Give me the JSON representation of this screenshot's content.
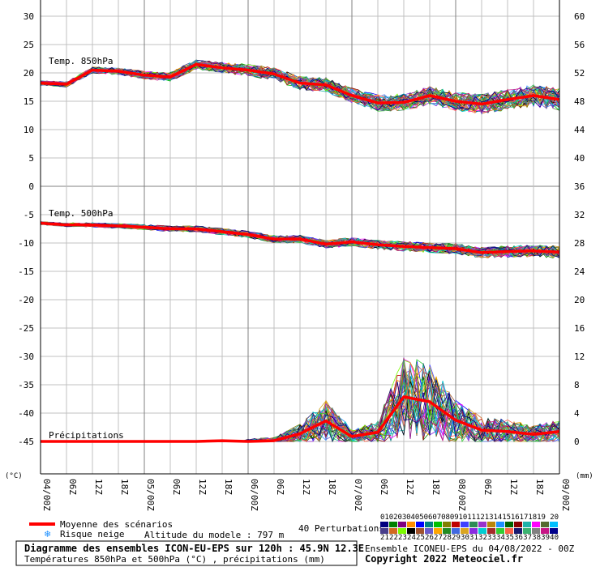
{
  "chart_data": {
    "type": "line",
    "x_labels": [
      "04/00Z",
      "06Z",
      "12Z",
      "18Z",
      "05/00Z",
      "06Z",
      "12Z",
      "18Z",
      "06/00Z",
      "06Z",
      "12Z",
      "18Z",
      "07/00Z",
      "06Z",
      "12Z",
      "18Z",
      "08/00Z",
      "06Z",
      "12Z",
      "18Z",
      "09/00Z"
    ],
    "left_axis": {
      "unit": "(°C)",
      "ticks": [
        30,
        25,
        20,
        15,
        10,
        5,
        0,
        -5,
        -10,
        -15,
        -20,
        -25,
        -30,
        -35,
        -40,
        -45
      ]
    },
    "right_axis": {
      "unit": "(mm)",
      "ticks": [
        60,
        56,
        52,
        48,
        44,
        40,
        36,
        32,
        28,
        24,
        20,
        16,
        12,
        8,
        4,
        0
      ]
    },
    "panels": {
      "t850": {
        "title": "Temp. 850hPa",
        "mean": [
          18.2,
          18.0,
          20.5,
          20.3,
          19.6,
          19.3,
          21.5,
          20.9,
          20.5,
          19.8,
          18.2,
          17.9,
          16.0,
          14.7,
          14.8,
          16.0,
          15.0,
          14.5,
          15.3,
          16.0,
          15.3
        ]
      },
      "t500": {
        "title": "Temp. 500hPa",
        "mean": [
          -6.5,
          -6.8,
          -6.8,
          -7.0,
          -7.2,
          -7.5,
          -7.5,
          -8.0,
          -8.5,
          -9.3,
          -9.3,
          -10.2,
          -9.8,
          -10.3,
          -10.6,
          -10.8,
          -11.0,
          -11.7,
          -11.5,
          -11.4,
          -11.6
        ]
      },
      "precip": {
        "title": "Précipitations",
        "mean": [
          0,
          0,
          0,
          0,
          0,
          0,
          0,
          0.1,
          0,
          0.1,
          1.1,
          2.9,
          0.7,
          1.3,
          6.3,
          5.6,
          3.0,
          1.6,
          1.4,
          1.0,
          1.4
        ]
      }
    },
    "legend": {
      "mean_label": "Moyenne des scénarios",
      "snow_label": "Risque neige",
      "altitude": "Altitude du modele : 797 m",
      "perturbations": "40 Perturbations",
      "member_numbers_top": "01020304050607080910111213141516171819 20",
      "member_numbers_bottom": "2122232425262728293031323334353637383940"
    },
    "colors": {
      "mean": "#ff0000",
      "grid": "#c0c0c0",
      "grid_major": "#808080",
      "members": [
        "#000080",
        "#008000",
        "#800080",
        "#ff8c00",
        "#0000ff",
        "#008080",
        "#00c000",
        "#808000",
        "#c00000",
        "#4040ff",
        "#2e8b57",
        "#9932cc",
        "#b8860b",
        "#1e90ff",
        "#006400",
        "#8b0000",
        "#20b2aa",
        "#ff00ff",
        "#556b2f",
        "#00bfff",
        "#483d8b",
        "#d2691e",
        "#7cfc00",
        "#000000",
        "#a0522d",
        "#6a5acd",
        "#ffa500",
        "#228b22",
        "#4169e1",
        "#daa520",
        "#8a2be2",
        "#00ced1",
        "#a52a2a",
        "#32cd32",
        "#ff6347",
        "#191970",
        "#3cb371",
        "#808080",
        "#c71585",
        "#00008b"
      ]
    }
  },
  "footer": {
    "title": "Diagramme des ensembles ICON-EU-EPS sur 120h : 45.9N 12.3E",
    "subtitle": "Températures 850hPa et 500hPa (°C) , précipitations (mm)",
    "run": "Ensemble ICONEU-EPS du 04/08/2022 - 00Z",
    "copyright": "Copyright 2022 Meteociel.fr"
  }
}
